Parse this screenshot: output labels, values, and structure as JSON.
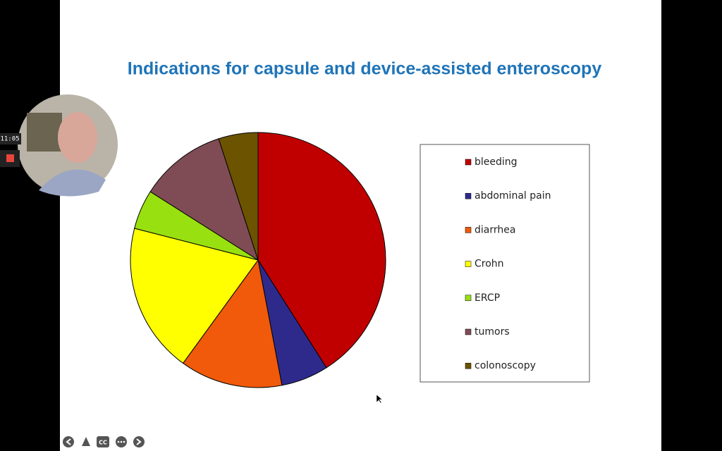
{
  "call_overlay": {
    "time": "11:05",
    "captions_button": "CC"
  },
  "chart_data": {
    "type": "pie",
    "title": "Indications for capsule and device-assisted enteroscopy",
    "categories": [
      "bleeding",
      "abdominal pain",
      "diarrhea",
      "Crohn",
      "ERCP",
      "tumors",
      "colonoscopy"
    ],
    "values": [
      41,
      6,
      13,
      19,
      5,
      11,
      5
    ],
    "colors": [
      "#c00000",
      "#2e2a8c",
      "#f05a0a",
      "#ffff00",
      "#99e010",
      "#7f4c55",
      "#6b5300"
    ],
    "legend": "right"
  }
}
